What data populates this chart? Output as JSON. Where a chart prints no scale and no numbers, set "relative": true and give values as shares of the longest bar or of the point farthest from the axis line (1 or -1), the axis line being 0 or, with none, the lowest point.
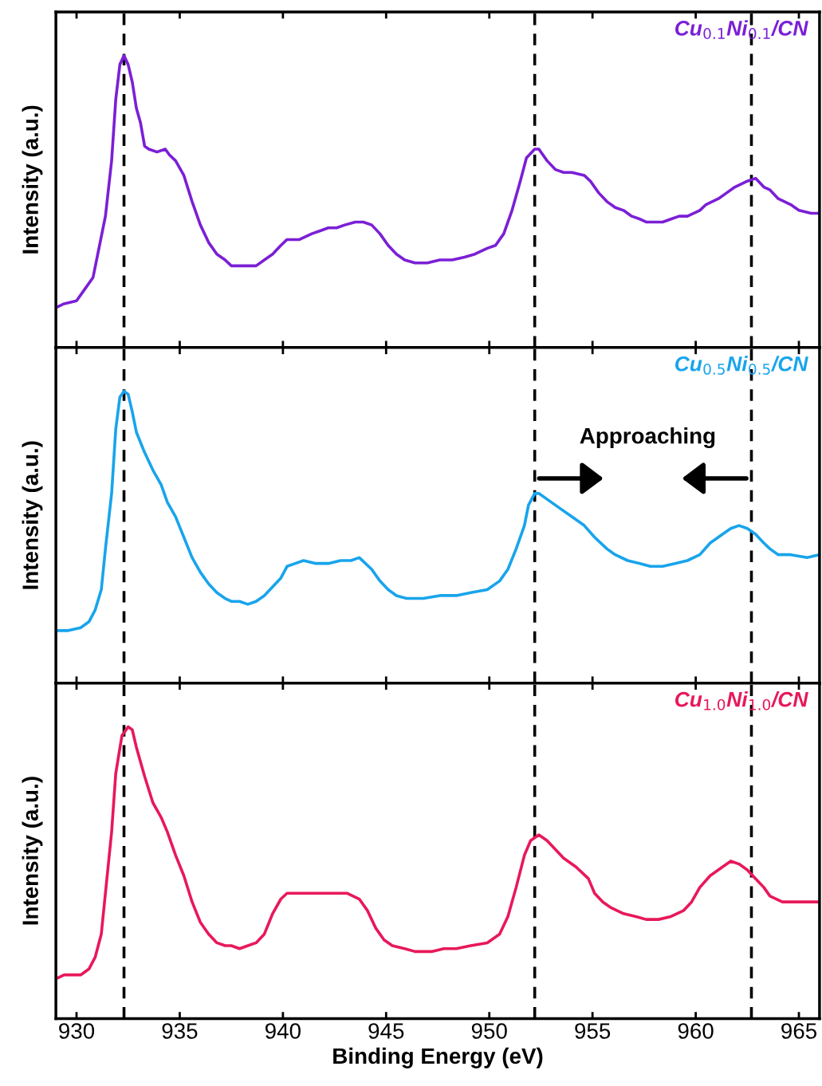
{
  "chart_data": [
    {
      "type": "line",
      "relative": true,
      "ylabel": "Intensity (a.u.)",
      "xlim": [
        929,
        966
      ],
      "xticks": [
        930,
        935,
        940,
        945,
        950,
        955,
        960,
        965
      ],
      "tick_labels": false,
      "grid": false,
      "legend": false,
      "ref_lines": [
        {
          "axis": "x",
          "value": 932.3,
          "color": "#000000",
          "line_style": "dashed"
        },
        {
          "axis": "x",
          "value": 952.2,
          "color": "#000000",
          "line_style": "dashed"
        },
        {
          "axis": "x",
          "value": 962.7,
          "color": "#000000",
          "line_style": "dashed"
        }
      ],
      "series": [
        {
          "name": "Cu$_{0.1}$Ni$_{0.1}$/CN",
          "color": "#7b1fd6",
          "x": [
            929.1,
            929.4,
            930.0,
            930.4,
            930.8,
            931.0,
            931.4,
            931.7,
            931.9,
            932.1,
            932.3,
            932.5,
            932.7,
            932.9,
            933.1,
            933.3,
            933.5,
            933.9,
            934.3,
            934.5,
            934.8,
            935.2,
            935.6,
            936.0,
            936.4,
            936.8,
            937.2,
            937.5,
            937.9,
            938.3,
            938.7,
            939.1,
            939.5,
            939.9,
            940.2,
            940.8,
            941.4,
            941.8,
            942.2,
            942.6,
            943.0,
            943.5,
            943.9,
            944.3,
            944.7,
            945.1,
            945.5,
            945.9,
            946.4,
            947.0,
            947.6,
            948.2,
            948.8,
            949.3,
            949.9,
            950.3,
            950.7,
            951.1,
            951.5,
            951.8,
            952.2,
            952.4,
            952.8,
            953.2,
            953.6,
            954.0,
            954.6,
            954.9,
            955.3,
            955.7,
            956.1,
            956.5,
            956.9,
            957.3,
            957.6,
            958.0,
            958.4,
            958.8,
            959.2,
            959.6,
            960.2,
            960.5,
            961.1,
            961.5,
            961.9,
            962.5,
            962.9,
            963.3,
            963.6,
            964.0,
            964.6,
            965.0,
            965.6,
            966.0
          ],
          "values": [
            0.14,
            0.15,
            0.16,
            0.2,
            0.24,
            0.31,
            0.45,
            0.64,
            0.85,
            0.97,
            1.0,
            0.97,
            0.91,
            0.82,
            0.77,
            0.69,
            0.68,
            0.67,
            0.68,
            0.66,
            0.64,
            0.59,
            0.5,
            0.42,
            0.36,
            0.32,
            0.3,
            0.28,
            0.28,
            0.28,
            0.28,
            0.3,
            0.32,
            0.35,
            0.37,
            0.37,
            0.39,
            0.4,
            0.41,
            0.41,
            0.42,
            0.43,
            0.43,
            0.42,
            0.39,
            0.35,
            0.32,
            0.3,
            0.29,
            0.29,
            0.3,
            0.3,
            0.31,
            0.32,
            0.34,
            0.35,
            0.39,
            0.47,
            0.57,
            0.65,
            0.68,
            0.68,
            0.64,
            0.61,
            0.6,
            0.6,
            0.59,
            0.57,
            0.53,
            0.5,
            0.48,
            0.47,
            0.45,
            0.44,
            0.43,
            0.43,
            0.43,
            0.44,
            0.45,
            0.45,
            0.47,
            0.49,
            0.51,
            0.53,
            0.55,
            0.57,
            0.58,
            0.55,
            0.54,
            0.51,
            0.49,
            0.47,
            0.46,
            0.46
          ]
        }
      ]
    },
    {
      "type": "line",
      "relative": true,
      "ylabel": "Intensity (a.u.)",
      "xlim": [
        929,
        966
      ],
      "xticks": [
        930,
        935,
        940,
        945,
        950,
        955,
        960,
        965
      ],
      "tick_labels": false,
      "grid": false,
      "legend": false,
      "annotations": [
        "Approaching"
      ],
      "ref_lines": [
        {
          "axis": "x",
          "value": 932.3,
          "color": "#000000",
          "line_style": "dashed"
        },
        {
          "axis": "x",
          "value": 952.2,
          "color": "#000000",
          "line_style": "dashed"
        },
        {
          "axis": "x",
          "value": 962.7,
          "color": "#000000",
          "line_style": "dashed"
        }
      ],
      "series": [
        {
          "name": "Cu$_{0.5}$Ni$_{0.5}$/CN",
          "color": "#18a4ec",
          "x": [
            929.1,
            929.6,
            930.2,
            930.6,
            930.9,
            931.2,
            931.4,
            931.7,
            931.9,
            932.1,
            932.3,
            932.5,
            932.7,
            932.9,
            933.3,
            933.7,
            934.1,
            934.4,
            934.8,
            935.2,
            935.6,
            936.0,
            936.4,
            936.8,
            937.2,
            937.5,
            937.9,
            938.3,
            938.7,
            939.1,
            939.5,
            939.9,
            940.2,
            940.6,
            941.0,
            941.6,
            942.2,
            942.8,
            943.3,
            943.7,
            944.0,
            944.3,
            944.7,
            945.1,
            945.5,
            946.0,
            946.8,
            947.6,
            948.4,
            949.1,
            949.9,
            950.5,
            950.9,
            951.3,
            951.7,
            951.9,
            952.2,
            952.4,
            952.8,
            953.4,
            954.0,
            954.6,
            955.1,
            955.7,
            956.1,
            956.7,
            957.3,
            957.8,
            958.4,
            959.0,
            959.6,
            960.2,
            960.7,
            961.3,
            961.7,
            962.1,
            962.5,
            962.9,
            963.3,
            963.6,
            964.0,
            964.6,
            965.4,
            966.0
          ],
          "values": [
            0.18,
            0.18,
            0.19,
            0.21,
            0.25,
            0.32,
            0.46,
            0.65,
            0.87,
            0.98,
            1.0,
            0.99,
            0.93,
            0.86,
            0.79,
            0.73,
            0.68,
            0.62,
            0.57,
            0.5,
            0.43,
            0.38,
            0.34,
            0.31,
            0.29,
            0.28,
            0.28,
            0.27,
            0.28,
            0.3,
            0.33,
            0.36,
            0.4,
            0.41,
            0.42,
            0.41,
            0.41,
            0.42,
            0.42,
            0.43,
            0.41,
            0.39,
            0.35,
            0.32,
            0.3,
            0.29,
            0.29,
            0.3,
            0.3,
            0.31,
            0.32,
            0.35,
            0.39,
            0.46,
            0.54,
            0.61,
            0.65,
            0.65,
            0.63,
            0.6,
            0.57,
            0.54,
            0.5,
            0.46,
            0.44,
            0.42,
            0.41,
            0.4,
            0.4,
            0.41,
            0.42,
            0.44,
            0.48,
            0.51,
            0.53,
            0.54,
            0.53,
            0.51,
            0.48,
            0.46,
            0.44,
            0.44,
            0.43,
            0.44
          ]
        }
      ]
    },
    {
      "type": "line",
      "relative": true,
      "ylabel": "Intensity (a.u.)",
      "xlabel": "Binding Energy (eV)",
      "xlim": [
        929,
        966
      ],
      "xticks": [
        930,
        935,
        940,
        945,
        950,
        955,
        960,
        965
      ],
      "tick_labels": "x",
      "grid": false,
      "legend": false,
      "ref_lines": [
        {
          "axis": "x",
          "value": 932.3,
          "color": "#000000",
          "line_style": "dashed"
        },
        {
          "axis": "x",
          "value": 952.2,
          "color": "#000000",
          "line_style": "dashed"
        },
        {
          "axis": "x",
          "value": 962.7,
          "color": "#000000",
          "line_style": "dashed"
        }
      ],
      "series": [
        {
          "name": "Cu$_{1.0}$Ni$_{1.0}$/CN",
          "color": "#e8185a",
          "x": [
            929.1,
            929.4,
            929.8,
            930.2,
            930.6,
            930.9,
            931.2,
            931.4,
            931.7,
            931.9,
            932.2,
            932.5,
            932.7,
            932.9,
            933.3,
            933.7,
            934.1,
            934.4,
            934.8,
            935.2,
            935.6,
            936.0,
            936.4,
            936.8,
            937.2,
            937.5,
            937.9,
            938.3,
            938.7,
            939.1,
            939.5,
            939.9,
            940.2,
            940.8,
            941.4,
            942.0,
            942.6,
            943.1,
            943.7,
            944.1,
            944.5,
            944.9,
            945.3,
            945.9,
            946.4,
            947.2,
            947.8,
            948.4,
            949.1,
            949.9,
            950.5,
            950.9,
            951.3,
            951.7,
            952.0,
            952.4,
            952.8,
            953.2,
            953.6,
            954.2,
            954.8,
            955.1,
            955.5,
            955.9,
            956.5,
            957.1,
            957.6,
            958.2,
            958.8,
            959.4,
            959.8,
            960.2,
            960.7,
            961.3,
            961.7,
            962.1,
            962.5,
            962.9,
            963.3,
            963.6,
            964.2,
            965.0,
            966.0
          ],
          "values": [
            0.14,
            0.15,
            0.15,
            0.15,
            0.17,
            0.21,
            0.29,
            0.43,
            0.64,
            0.84,
            0.97,
            1.0,
            0.99,
            0.93,
            0.83,
            0.74,
            0.69,
            0.64,
            0.56,
            0.49,
            0.4,
            0.33,
            0.29,
            0.26,
            0.25,
            0.25,
            0.24,
            0.25,
            0.26,
            0.29,
            0.36,
            0.41,
            0.43,
            0.43,
            0.43,
            0.43,
            0.43,
            0.43,
            0.41,
            0.37,
            0.31,
            0.27,
            0.25,
            0.24,
            0.23,
            0.23,
            0.24,
            0.24,
            0.25,
            0.26,
            0.29,
            0.35,
            0.45,
            0.56,
            0.61,
            0.63,
            0.61,
            0.58,
            0.55,
            0.52,
            0.48,
            0.43,
            0.4,
            0.38,
            0.36,
            0.35,
            0.34,
            0.34,
            0.35,
            0.37,
            0.4,
            0.45,
            0.49,
            0.52,
            0.54,
            0.53,
            0.51,
            0.48,
            0.45,
            0.42,
            0.4,
            0.4,
            0.4
          ]
        }
      ]
    }
  ]
}
